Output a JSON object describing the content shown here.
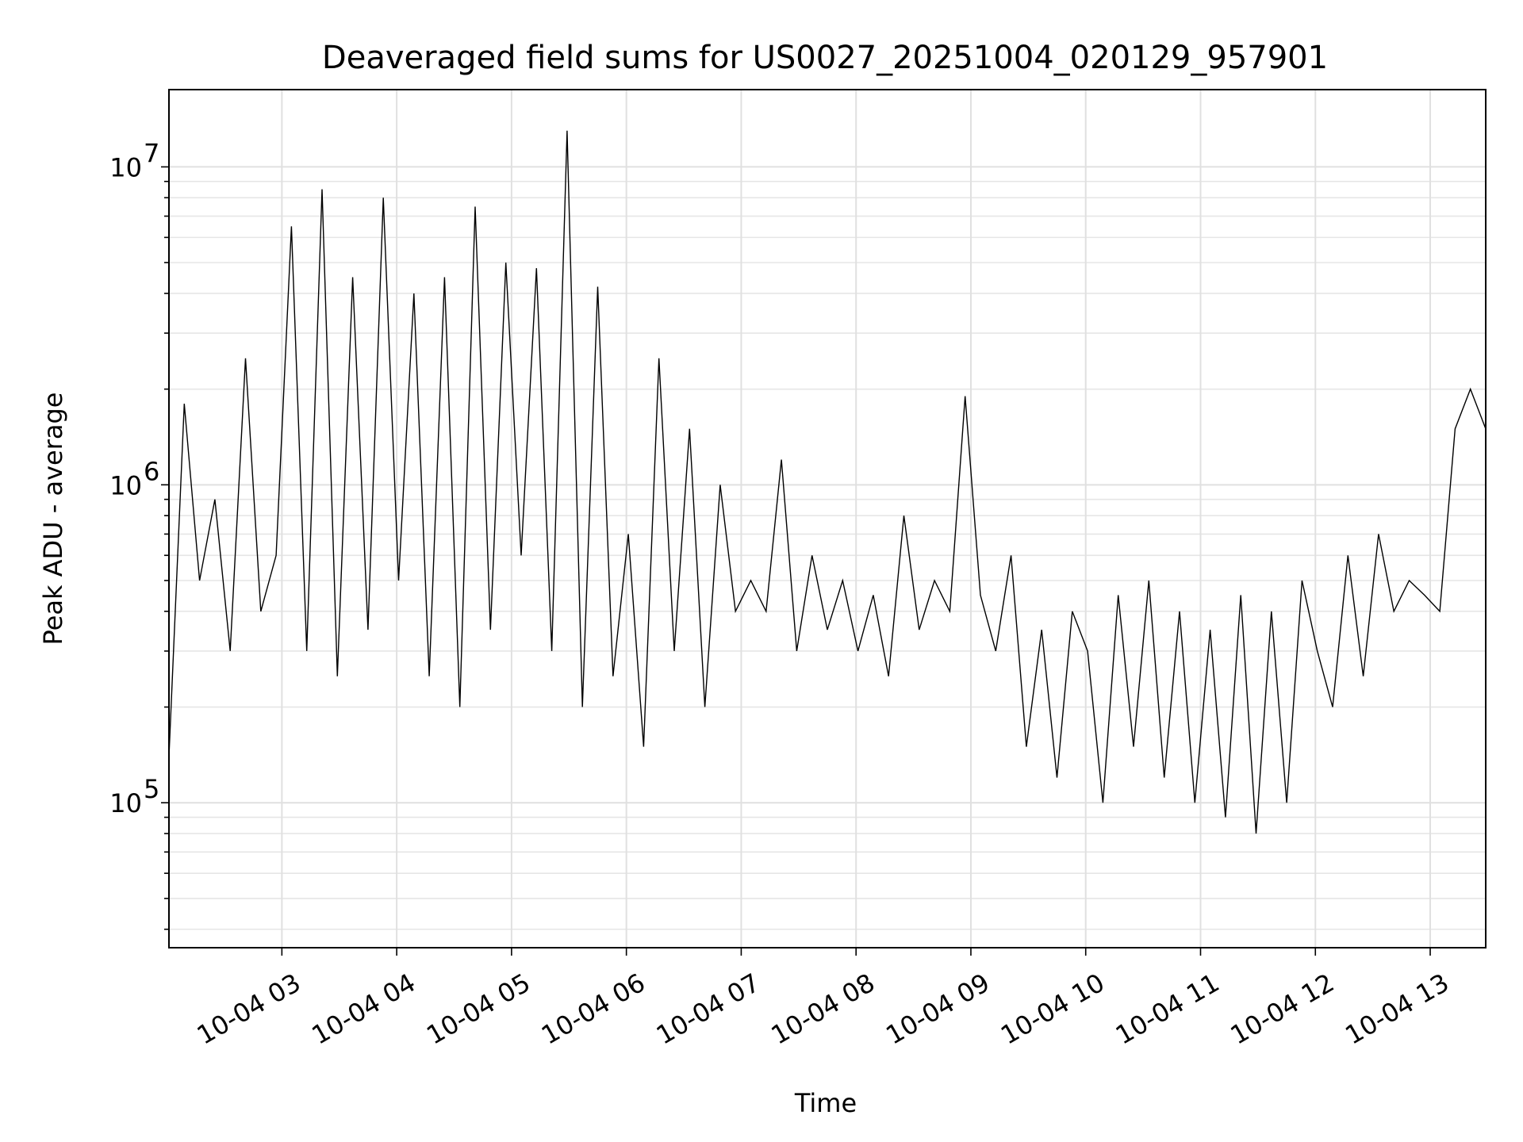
{
  "chart_data": {
    "type": "line",
    "title": "Deaveraged field sums for US0027_20251004_020129_957901",
    "xlabel": "Time",
    "ylabel": "Peak ADU - average",
    "yscale": "log",
    "xlim": [
      "2025-10-04 02:01",
      "2025-10-04 13:29"
    ],
    "ylim": [
      35000,
      17500000
    ],
    "grid": true,
    "line_color": "#000000",
    "x_ticks": [
      {
        "value": "2025-10-04 03:00",
        "label": "10-04 03"
      },
      {
        "value": "2025-10-04 04:00",
        "label": "10-04 04"
      },
      {
        "value": "2025-10-04 05:00",
        "label": "10-04 05"
      },
      {
        "value": "2025-10-04 06:00",
        "label": "10-04 06"
      },
      {
        "value": "2025-10-04 07:00",
        "label": "10-04 07"
      },
      {
        "value": "2025-10-04 08:00",
        "label": "10-04 08"
      },
      {
        "value": "2025-10-04 09:00",
        "label": "10-04 09"
      },
      {
        "value": "2025-10-04 10:00",
        "label": "10-04 10"
      },
      {
        "value": "2025-10-04 11:00",
        "label": "10-04 11"
      },
      {
        "value": "2025-10-04 12:00",
        "label": "10-04 12"
      },
      {
        "value": "2025-10-04 13:00",
        "label": "10-04 13"
      }
    ],
    "y_ticks": [
      {
        "value": 100000,
        "base": "10",
        "exp": "5"
      },
      {
        "value": 1000000,
        "base": "10",
        "exp": "6"
      },
      {
        "value": 10000000,
        "base": "10",
        "exp": "7"
      }
    ],
    "series": [
      {
        "x": [
          "2025-10-04 02:01",
          "2025-10-04 02:09",
          "2025-10-04 02:17",
          "2025-10-04 02:25",
          "2025-10-04 02:33",
          "2025-10-04 02:41",
          "2025-10-04 02:49",
          "2025-10-04 02:57",
          "2025-10-04 03:05",
          "2025-10-04 03:13",
          "2025-10-04 03:21",
          "2025-10-04 03:29",
          "2025-10-04 03:37",
          "2025-10-04 03:45",
          "2025-10-04 03:53",
          "2025-10-04 04:01",
          "2025-10-04 04:09",
          "2025-10-04 04:17",
          "2025-10-04 04:25",
          "2025-10-04 04:33",
          "2025-10-04 04:41",
          "2025-10-04 04:49",
          "2025-10-04 04:57",
          "2025-10-04 05:05",
          "2025-10-04 05:13",
          "2025-10-04 05:21",
          "2025-10-04 05:29",
          "2025-10-04 05:37",
          "2025-10-04 05:45",
          "2025-10-04 05:53",
          "2025-10-04 06:01",
          "2025-10-04 06:09",
          "2025-10-04 06:17",
          "2025-10-04 06:25",
          "2025-10-04 06:33",
          "2025-10-04 06:41",
          "2025-10-04 06:49",
          "2025-10-04 06:57",
          "2025-10-04 07:05",
          "2025-10-04 07:13",
          "2025-10-04 07:21",
          "2025-10-04 07:29",
          "2025-10-04 07:37",
          "2025-10-04 07:45",
          "2025-10-04 07:53",
          "2025-10-04 08:01",
          "2025-10-04 08:09",
          "2025-10-04 08:17",
          "2025-10-04 08:25",
          "2025-10-04 08:33",
          "2025-10-04 08:41",
          "2025-10-04 08:49",
          "2025-10-04 08:57",
          "2025-10-04 09:05",
          "2025-10-04 09:13",
          "2025-10-04 09:21",
          "2025-10-04 09:29",
          "2025-10-04 09:37",
          "2025-10-04 09:45",
          "2025-10-04 09:53",
          "2025-10-04 10:01",
          "2025-10-04 10:09",
          "2025-10-04 10:17",
          "2025-10-04 10:25",
          "2025-10-04 10:33",
          "2025-10-04 10:41",
          "2025-10-04 10:49",
          "2025-10-04 10:57",
          "2025-10-04 11:05",
          "2025-10-04 11:13",
          "2025-10-04 11:21",
          "2025-10-04 11:29",
          "2025-10-04 11:37",
          "2025-10-04 11:45",
          "2025-10-04 11:53",
          "2025-10-04 12:01",
          "2025-10-04 12:09",
          "2025-10-04 12:17",
          "2025-10-04 12:25",
          "2025-10-04 12:33",
          "2025-10-04 12:41",
          "2025-10-04 12:49",
          "2025-10-04 12:57",
          "2025-10-04 13:05",
          "2025-10-04 13:13",
          "2025-10-04 13:21",
          "2025-10-04 13:29"
        ],
        "y": [
          140000,
          1800000,
          500000,
          900000,
          300000,
          2500000,
          400000,
          600000,
          6500000,
          300000,
          8500000,
          250000,
          4500000,
          350000,
          8000000,
          500000,
          4000000,
          250000,
          4500000,
          200000,
          7500000,
          350000,
          5000000,
          600000,
          4800000,
          300000,
          13000000,
          200000,
          4200000,
          250000,
          700000,
          150000,
          2500000,
          300000,
          1500000,
          200000,
          1000000,
          400000,
          500000,
          400000,
          1200000,
          300000,
          600000,
          350000,
          500000,
          300000,
          450000,
          250000,
          800000,
          350000,
          500000,
          400000,
          1900000,
          450000,
          300000,
          600000,
          150000,
          350000,
          120000,
          400000,
          300000,
          100000,
          450000,
          150000,
          500000,
          120000,
          400000,
          100000,
          350000,
          90000,
          450000,
          80000,
          400000,
          100000,
          500000,
          300000,
          200000,
          600000,
          250000,
          700000,
          400000,
          500000,
          450000,
          400000,
          1500000,
          2000000,
          1500000
        ]
      }
    ]
  }
}
